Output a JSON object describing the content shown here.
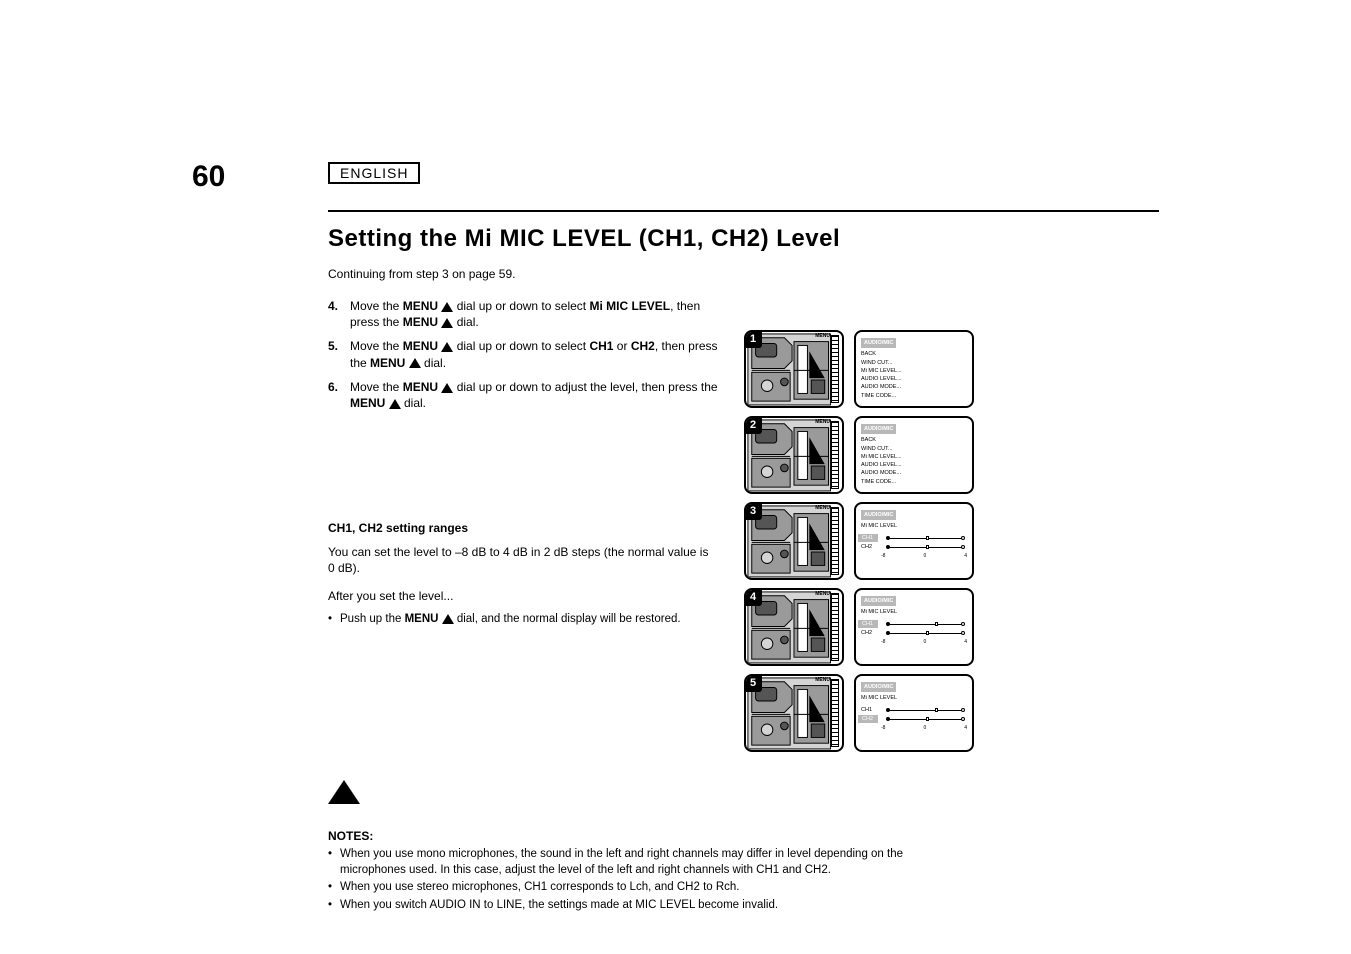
{
  "page": {
    "number": "60",
    "label": "ENGLISH"
  },
  "section": {
    "title": "Setting the Mi MIC LEVEL (CH1, CH2) Level"
  },
  "intro": "Continuing from step 3 on page 59.",
  "steps": [
    {
      "num": "4.",
      "text_before": "Move the ",
      "bold1": "MENU ",
      "triangle": true,
      "text_mid": " dial up or down to select ",
      "bold2": "Mi MIC LEVEL",
      "text_after": ", then press the ",
      "bold3": "MENU ",
      "triangle2": true,
      "text_end": " dial."
    },
    {
      "num": "5.",
      "text_before": "Move the ",
      "bold1": "MENU ",
      "triangle": true,
      "text_mid": " dial up or down to select ",
      "bold2": "CH1",
      "text_after": " or ",
      "bold3": "CH2",
      "text_after2": ", then press the ",
      "bold4": "MENU ",
      "triangle2": true,
      "text_end": " dial."
    },
    {
      "num": "6.",
      "text_before": "Move the ",
      "bold1": "MENU ",
      "triangle": true,
      "text_mid": " dial up or down to adjust the level, then press the ",
      "bold2": "MENU ",
      "triangle2": true,
      "text_end": " dial."
    }
  ],
  "ranges": {
    "heading": "CH1, CH2 setting ranges",
    "text": "You can set the level to –8 dB to 4 dB in 2 dB steps (the normal value is 0 dB)."
  },
  "after_setting": "After you set the level...",
  "step_final_li": "Push up the ",
  "step_final_bold": "MENU ",
  "step_final_li2": " dial, and the normal display will be restored.",
  "note_heading": "NOTES:",
  "notes": [
    "When you use mono microphones, the sound in the left and right channels may differ in level depending on the microphones used. In this case, adjust the level of the left and right channels with CH1 and CH2.",
    "When you use stereo microphones, CH1 corresponds to Lch, and CH2 to Rch.",
    "When you switch AUDIO IN to LINE, the settings made at MIC LEVEL become invalid."
  ],
  "diagrams": {
    "menu_label": "MENU",
    "screens": [
      {
        "step": "1",
        "type": "text",
        "title": "AUDIO/MIC",
        "lines": [
          "BACK",
          "WIND CUT...",
          "Mi MIC LEVEL...",
          "AUDIO LEVEL...",
          "AUDIO MODE...",
          "TIME CODE..."
        ]
      },
      {
        "step": "2",
        "type": "text",
        "title": "AUDIO/MIC",
        "lines": [
          "BACK",
          "WIND CUT...",
          "Mi MIC LEVEL...",
          "AUDIO LEVEL...",
          "AUDIO MODE...",
          "TIME CODE..."
        ]
      },
      {
        "step": "3",
        "type": "sliders",
        "title": "AUDIO/MIC",
        "subtitle": "Mi MIC LEVEL",
        "highlight": 0,
        "rows": [
          {
            "label": "CH1",
            "pos": 50
          },
          {
            "label": "CH2",
            "pos": 50
          }
        ],
        "marks": [
          "-8",
          "0",
          "4"
        ]
      },
      {
        "step": "4",
        "type": "sliders",
        "title": "AUDIO/MIC",
        "subtitle": "Mi MIC LEVEL",
        "highlight": 0,
        "rows": [
          {
            "label": "CH1",
            "pos": 62
          },
          {
            "label": "CH2",
            "pos": 50
          }
        ],
        "marks": [
          "-8",
          "0",
          "4"
        ]
      },
      {
        "step": "5",
        "type": "sliders",
        "title": "AUDIO/MIC",
        "subtitle": "Mi MIC LEVEL",
        "highlight": 1,
        "rows": [
          {
            "label": "CH1",
            "pos": 62
          },
          {
            "label": "CH2",
            "pos": 50
          }
        ],
        "marks": [
          "-8",
          "0",
          "4"
        ]
      }
    ]
  },
  "colors": {
    "highlight_bar": "#c6c6c6",
    "menu_gray": "#b8b8b8"
  },
  "camera_drawing_colors": {
    "body": "#9a9a9a",
    "dark": "#555555",
    "light": "#d4d4d4",
    "stroke": "#000000"
  }
}
